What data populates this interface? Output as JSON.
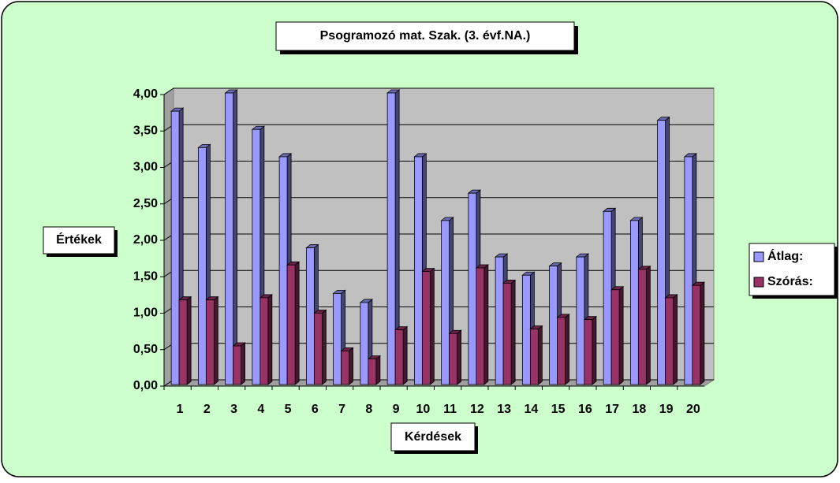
{
  "chart_data": {
    "type": "bar3d",
    "title": "Psogramozó mat.  Szak. (3. évf.NA.)",
    "y_label": "Értékek",
    "x_label": "Kérdések",
    "categories": [
      "1",
      "2",
      "3",
      "4",
      "5",
      "6",
      "7",
      "8",
      "9",
      "10",
      "11",
      "12",
      "13",
      "14",
      "15",
      "16",
      "17",
      "18",
      "19",
      "20"
    ],
    "series": [
      {
        "name": "Átlag:",
        "color": "#9999ff",
        "values": [
          3.75,
          3.25,
          4.0,
          3.5,
          3.125,
          1.875,
          1.25,
          1.125,
          4.0,
          3.125,
          2.25,
          2.625,
          1.75,
          1.5,
          1.625,
          1.75,
          2.375,
          2.25,
          3.625,
          3.125
        ]
      },
      {
        "name": "Szórás:",
        "color": "#993366",
        "values": [
          1.16,
          1.16,
          0.53,
          1.19,
          1.64,
          0.98,
          0.46,
          0.35,
          0.75,
          1.55,
          0.7,
          1.6,
          1.39,
          0.76,
          0.92,
          0.89,
          1.3,
          1.58,
          1.19,
          1.36
        ]
      }
    ],
    "ylim": [
      0,
      4
    ],
    "yticks": [
      {
        "value": 0,
        "label": "0,00"
      },
      {
        "value": 0.5,
        "label": "0,50"
      },
      {
        "value": 1,
        "label": "1,00"
      },
      {
        "value": 1.5,
        "label": "1,50"
      },
      {
        "value": 2,
        "label": "2,00"
      },
      {
        "value": 2.5,
        "label": "2,50"
      },
      {
        "value": 3,
        "label": "3,00"
      },
      {
        "value": 3.5,
        "label": "3,50"
      },
      {
        "value": 4,
        "label": "4,00"
      }
    ],
    "grid": true,
    "legend": "right"
  }
}
